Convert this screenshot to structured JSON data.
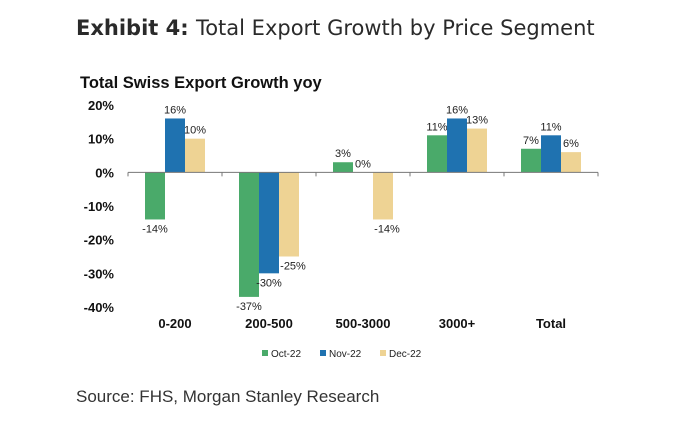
{
  "exhibit": {
    "label": "Exhibit 4",
    "title": "Total Export Growth by Price Segment"
  },
  "chart_data": {
    "type": "bar",
    "title": "Total Swiss Export Growth yoy",
    "categories": [
      "0-200",
      "200-500",
      "500-3000",
      "3000+",
      "Total"
    ],
    "series": [
      {
        "name": "Oct-22",
        "color": "#4aaa6a",
        "values": [
          -14,
          -37,
          3,
          11,
          7
        ],
        "labels": [
          "-14%",
          "-37%",
          "3%",
          "11%",
          "7%"
        ]
      },
      {
        "name": "Nov-22",
        "color": "#1f72b0",
        "values": [
          16,
          -30,
          0,
          16,
          11
        ],
        "labels": [
          "16%",
          "-30%",
          "0%",
          "16%",
          "11%"
        ]
      },
      {
        "name": "Dec-22",
        "color": "#eed394",
        "values": [
          10,
          -25,
          -14,
          13,
          6
        ],
        "labels": [
          "10%",
          "-25%",
          "-14%",
          "13%",
          "6%"
        ]
      }
    ],
    "ylim": [
      -40,
      20
    ],
    "yticks": [
      20,
      10,
      0,
      -10,
      -20,
      -30,
      -40
    ],
    "ytick_labels": [
      "20%",
      "10%",
      "0%",
      "-10%",
      "-20%",
      "-30%",
      "-40%"
    ],
    "xlabel": "",
    "ylabel": "",
    "legend_position": "bottom"
  },
  "source": "Source: FHS, Morgan Stanley Research"
}
